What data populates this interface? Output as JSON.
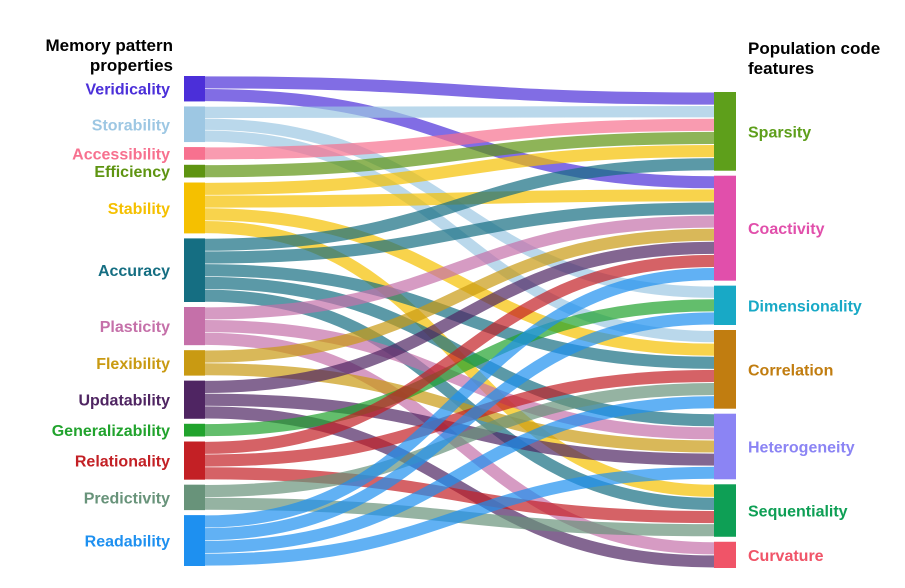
{
  "titles": {
    "left_line1": "Memory pattern",
    "left_line2": "properties",
    "right_line1": "Population code",
    "right_line2": "features"
  },
  "chart_data": {
    "type": "sankey",
    "sources": [
      {
        "name": "Veridicality",
        "color": "#4B2FD9",
        "weight": 5
      },
      {
        "name": "Storability",
        "color": "#9DC7E3",
        "weight": 7
      },
      {
        "name": "Accessibility",
        "color": "#F7718F",
        "weight": 2.5
      },
      {
        "name": "Efficiency",
        "color": "#5E9411",
        "weight": 2.5
      },
      {
        "name": "Stability",
        "color": "#F5C000",
        "weight": 10
      },
      {
        "name": "Accuracy",
        "color": "#156E82",
        "weight": 12.5
      },
      {
        "name": "Plasticity",
        "color": "#C570A9",
        "weight": 7.5
      },
      {
        "name": "Flexibility",
        "color": "#C99A12",
        "weight": 5
      },
      {
        "name": "Updatability",
        "color": "#4F2562",
        "weight": 7.5
      },
      {
        "name": "Generalizability",
        "color": "#21A32D",
        "weight": 2.5
      },
      {
        "name": "Relationality",
        "color": "#C32025",
        "weight": 7.5
      },
      {
        "name": "Predictivity",
        "color": "#68937A",
        "weight": 5
      },
      {
        "name": "Readability",
        "color": "#1E90F0",
        "weight": 10
      }
    ],
    "targets": [
      {
        "name": "Sparsity",
        "color": "#5E9F1B"
      },
      {
        "name": "Coactivity",
        "color": "#E14FAB"
      },
      {
        "name": "Dimensionality",
        "color": "#18A9C6"
      },
      {
        "name": "Correlation",
        "color": "#C17D10"
      },
      {
        "name": "Heterogeneity",
        "color": "#8B84F4"
      },
      {
        "name": "Sequentiality",
        "color": "#0E9F55"
      },
      {
        "name": "Curvature",
        "color": "#F05468"
      }
    ],
    "links": [
      [
        "Veridicality",
        "Sparsity"
      ],
      [
        "Veridicality",
        "Coactivity"
      ],
      [
        "Storability",
        "Sparsity"
      ],
      [
        "Storability",
        "Dimensionality"
      ],
      [
        "Storability",
        "Correlation"
      ],
      [
        "Accessibility",
        "Sparsity"
      ],
      [
        "Efficiency",
        "Sparsity"
      ],
      [
        "Stability",
        "Sparsity"
      ],
      [
        "Stability",
        "Coactivity"
      ],
      [
        "Stability",
        "Correlation"
      ],
      [
        "Stability",
        "Sequentiality"
      ],
      [
        "Accuracy",
        "Sparsity"
      ],
      [
        "Accuracy",
        "Coactivity"
      ],
      [
        "Accuracy",
        "Correlation"
      ],
      [
        "Accuracy",
        "Heterogeneity"
      ],
      [
        "Accuracy",
        "Sequentiality"
      ],
      [
        "Plasticity",
        "Coactivity"
      ],
      [
        "Plasticity",
        "Heterogeneity"
      ],
      [
        "Plasticity",
        "Curvature"
      ],
      [
        "Flexibility",
        "Coactivity"
      ],
      [
        "Flexibility",
        "Heterogeneity"
      ],
      [
        "Updatability",
        "Coactivity"
      ],
      [
        "Updatability",
        "Heterogeneity"
      ],
      [
        "Updatability",
        "Curvature"
      ],
      [
        "Generalizability",
        "Dimensionality"
      ],
      [
        "Relationality",
        "Coactivity"
      ],
      [
        "Relationality",
        "Correlation"
      ],
      [
        "Relationality",
        "Sequentiality"
      ],
      [
        "Predictivity",
        "Correlation"
      ],
      [
        "Predictivity",
        "Sequentiality"
      ],
      [
        "Readability",
        "Coactivity"
      ],
      [
        "Readability",
        "Dimensionality"
      ],
      [
        "Readability",
        "Correlation"
      ],
      [
        "Readability",
        "Heterogeneity"
      ]
    ]
  }
}
